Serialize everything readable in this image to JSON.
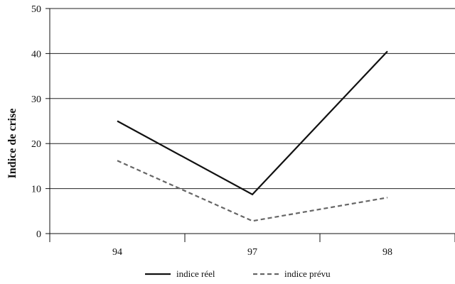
{
  "chart_data": {
    "type": "line",
    "title": "",
    "xlabel": "",
    "ylabel": "Indice de crise",
    "categories": [
      "94",
      "97",
      "98"
    ],
    "ylim": [
      0,
      50
    ],
    "yticks": [
      0,
      10,
      20,
      30,
      40,
      50
    ],
    "grid": true,
    "legend_position": "bottom",
    "series": [
      {
        "name": "indice réel",
        "values": [
          25,
          8.7,
          40.5
        ],
        "color": "#111111",
        "style": "solid"
      },
      {
        "name": "indice prévu",
        "values": [
          16.2,
          2.8,
          8
        ],
        "color": "#666666",
        "style": "dashed"
      }
    ]
  }
}
